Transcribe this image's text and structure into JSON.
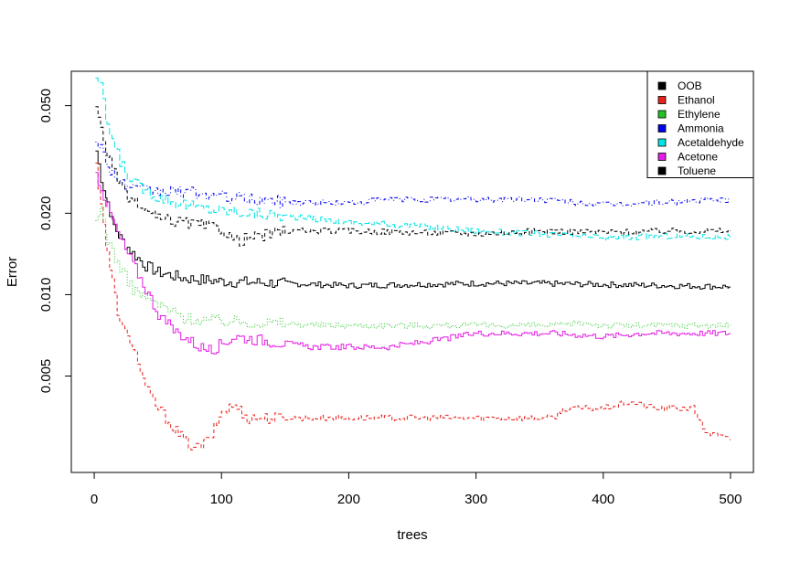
{
  "chart_data": {
    "type": "line",
    "title": "",
    "xlabel": "trees",
    "ylabel": "Error",
    "x_scale": "linear",
    "y_scale": "log",
    "xlim": [
      -18,
      518
    ],
    "ylim": [
      0.0022,
      0.067
    ],
    "x_ticks": [
      0,
      100,
      200,
      300,
      400,
      500
    ],
    "x_tick_labels": [
      "0",
      "100",
      "200",
      "300",
      "400",
      "500"
    ],
    "y_ticks": [
      0.005,
      0.01,
      0.02,
      0.05
    ],
    "y_tick_labels": [
      "0.005",
      "0.010",
      "0.020",
      "0.050"
    ],
    "grid": false,
    "legend_position": "top-right",
    "series": [
      {
        "name": "OOB",
        "color": "#000000",
        "dash": "solid",
        "points": [
          [
            1,
            0.034
          ],
          [
            5,
            0.027
          ],
          [
            10,
            0.022
          ],
          [
            15,
            0.018
          ],
          [
            20,
            0.0162
          ],
          [
            30,
            0.0142
          ],
          [
            40,
            0.0128
          ],
          [
            50,
            0.0121
          ],
          [
            70,
            0.0115
          ],
          [
            100,
            0.0112
          ],
          [
            150,
            0.011
          ],
          [
            200,
            0.0108
          ],
          [
            250,
            0.0109
          ],
          [
            300,
            0.011
          ],
          [
            350,
            0.011
          ],
          [
            400,
            0.0109
          ],
          [
            450,
            0.0108
          ],
          [
            500,
            0.0107
          ]
        ]
      },
      {
        "name": "Ethanol",
        "color": "#e8221e",
        "dash": "dashed",
        "points": [
          [
            1,
            0.03
          ],
          [
            5,
            0.022
          ],
          [
            10,
            0.014
          ],
          [
            20,
            0.0078
          ],
          [
            30,
            0.0065
          ],
          [
            40,
            0.0045
          ],
          [
            50,
            0.0038
          ],
          [
            60,
            0.0033
          ],
          [
            70,
            0.0029
          ],
          [
            80,
            0.0027
          ],
          [
            90,
            0.0029
          ],
          [
            100,
            0.0037
          ],
          [
            110,
            0.0039
          ],
          [
            120,
            0.0035
          ],
          [
            200,
            0.0035
          ],
          [
            260,
            0.0035
          ],
          [
            300,
            0.0035
          ],
          [
            360,
            0.0035
          ],
          [
            370,
            0.0038
          ],
          [
            400,
            0.0038
          ],
          [
            420,
            0.004
          ],
          [
            440,
            0.0038
          ],
          [
            470,
            0.0038
          ],
          [
            480,
            0.0031
          ],
          [
            500,
            0.0029
          ]
        ]
      },
      {
        "name": "Ethylene",
        "color": "#21c421",
        "dash": "dotted",
        "points": [
          [
            1,
            0.018
          ],
          [
            5,
            0.021
          ],
          [
            10,
            0.016
          ],
          [
            20,
            0.0125
          ],
          [
            30,
            0.0105
          ],
          [
            40,
            0.0098
          ],
          [
            50,
            0.0092
          ],
          [
            60,
            0.0087
          ],
          [
            70,
            0.0082
          ],
          [
            80,
            0.0081
          ],
          [
            100,
            0.008
          ],
          [
            130,
            0.0079
          ],
          [
            180,
            0.0077
          ],
          [
            250,
            0.0077
          ],
          [
            370,
            0.0077
          ],
          [
            380,
            0.0079
          ],
          [
            400,
            0.0077
          ],
          [
            500,
            0.0077
          ]
        ]
      },
      {
        "name": "Ammonia",
        "color": "#0000ee",
        "dash": "dotdash",
        "points": [
          [
            1,
            0.038
          ],
          [
            5,
            0.035
          ],
          [
            10,
            0.03
          ],
          [
            20,
            0.026
          ],
          [
            30,
            0.0245
          ],
          [
            50,
            0.024
          ],
          [
            70,
            0.024
          ],
          [
            100,
            0.023
          ],
          [
            150,
            0.022
          ],
          [
            200,
            0.0218
          ],
          [
            230,
            0.0225
          ],
          [
            300,
            0.0225
          ],
          [
            350,
            0.0225
          ],
          [
            400,
            0.0215
          ],
          [
            450,
            0.022
          ],
          [
            500,
            0.0225
          ]
        ]
      },
      {
        "name": "Acetaldehyde",
        "color": "#00e5e5",
        "dash": "longdash",
        "points": [
          [
            1,
            0.064
          ],
          [
            5,
            0.058
          ],
          [
            10,
            0.042
          ],
          [
            20,
            0.031
          ],
          [
            30,
            0.026
          ],
          [
            50,
            0.023
          ],
          [
            80,
            0.021
          ],
          [
            100,
            0.0205
          ],
          [
            150,
            0.0195
          ],
          [
            200,
            0.0185
          ],
          [
            250,
            0.018
          ],
          [
            300,
            0.0172
          ],
          [
            350,
            0.0168
          ],
          [
            400,
            0.0162
          ],
          [
            450,
            0.0165
          ],
          [
            500,
            0.0163
          ]
        ]
      },
      {
        "name": "Acetone",
        "color": "#e51ee5",
        "dash": "solid",
        "points": [
          [
            1,
            0.028
          ],
          [
            5,
            0.025
          ],
          [
            10,
            0.021
          ],
          [
            20,
            0.016
          ],
          [
            30,
            0.013
          ],
          [
            40,
            0.0105
          ],
          [
            50,
            0.0085
          ],
          [
            60,
            0.0075
          ],
          [
            70,
            0.007
          ],
          [
            80,
            0.0065
          ],
          [
            90,
            0.0062
          ],
          [
            100,
            0.0066
          ],
          [
            110,
            0.007
          ],
          [
            130,
            0.0068
          ],
          [
            170,
            0.0064
          ],
          [
            230,
            0.0064
          ],
          [
            270,
            0.0068
          ],
          [
            300,
            0.0072
          ],
          [
            360,
            0.0072
          ],
          [
            400,
            0.007
          ],
          [
            430,
            0.0072
          ],
          [
            500,
            0.0072
          ]
        ]
      },
      {
        "name": "Toluene",
        "color": "#000000",
        "dash": "dashed",
        "points": [
          [
            1,
            0.048
          ],
          [
            5,
            0.042
          ],
          [
            10,
            0.033
          ],
          [
            20,
            0.025
          ],
          [
            30,
            0.022
          ],
          [
            50,
            0.019
          ],
          [
            70,
            0.0185
          ],
          [
            100,
            0.0175
          ],
          [
            110,
            0.0158
          ],
          [
            150,
            0.0172
          ],
          [
            200,
            0.0172
          ],
          [
            250,
            0.017
          ],
          [
            300,
            0.0168
          ],
          [
            350,
            0.0172
          ],
          [
            400,
            0.017
          ],
          [
            450,
            0.0172
          ],
          [
            500,
            0.0172
          ]
        ]
      }
    ]
  }
}
